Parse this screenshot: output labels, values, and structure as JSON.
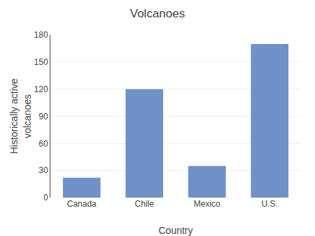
{
  "chart_data": {
    "type": "bar",
    "title": "Volcanoes",
    "xlabel": "Country",
    "ylabel": "Historically active\nvolcanoes",
    "categories": [
      "Canada",
      "Chile",
      "Mexico",
      "U.S."
    ],
    "values": [
      22,
      120,
      35,
      170
    ],
    "color": "#7090c8",
    "ylim": [
      0,
      180
    ],
    "yticks": [
      0,
      30,
      60,
      90,
      120,
      150,
      180
    ],
    "grid": true
  }
}
